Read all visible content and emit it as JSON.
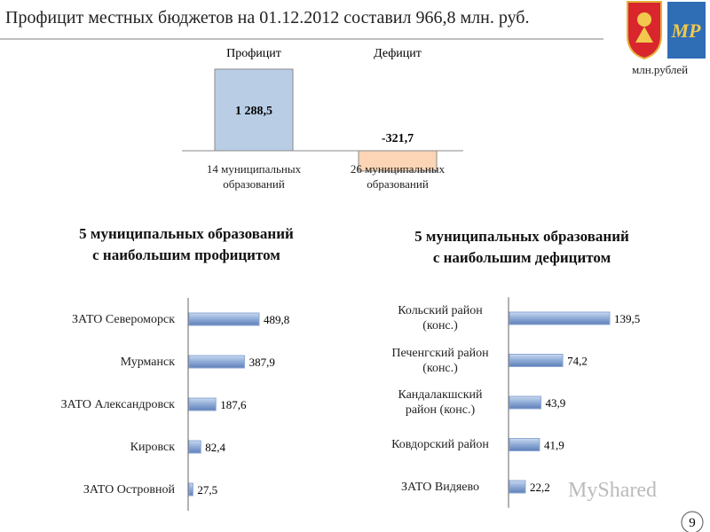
{
  "header": {
    "title": "Профицит местных бюджетов  на 01.12.2012 составил 966,8 млн. руб.",
    "unit": "млн.рублей",
    "page_number": "9",
    "watermark": "MyShared"
  },
  "chart_data": [
    {
      "type": "bar",
      "column_headers": [
        "Профицит",
        "Дефицит"
      ],
      "categories": [
        "14 муниципальных образований",
        "26 муниципальных образований"
      ],
      "values": [
        1288.5,
        -321.7
      ],
      "value_labels": [
        "1 288,5",
        "-321,7"
      ],
      "colors": [
        "#b9cde5",
        "#fbd5b5"
      ]
    },
    {
      "type": "bar",
      "orientation": "horizontal",
      "title": "5 муниципальных образований с наибольшим профицитом",
      "categories": [
        "ЗАТО Североморск",
        "Мурманск",
        "ЗАТО Александровск",
        "Кировск",
        "ЗАТО Островной"
      ],
      "values": [
        489.8,
        387.9,
        187.6,
        82.4,
        27.5
      ],
      "value_labels": [
        "489,8",
        "387,9",
        "187,6",
        "82,4",
        "27,5"
      ],
      "color": "#8eaad6"
    },
    {
      "type": "bar",
      "orientation": "horizontal",
      "title": "5 муниципальных образований с наибольшим дефицитом",
      "categories": [
        "Кольский район (конс.)",
        "Печенгский район (конс.)",
        "Кандалакшский район (конс.)",
        "Ковдорский район",
        "ЗАТО Видяево"
      ],
      "values": [
        139.5,
        74.2,
        43.9,
        41.9,
        22.2
      ],
      "value_labels": [
        "139,5",
        "74,2",
        "43,9",
        "41,9",
        "22,2"
      ],
      "color": "#8eaad6"
    }
  ]
}
